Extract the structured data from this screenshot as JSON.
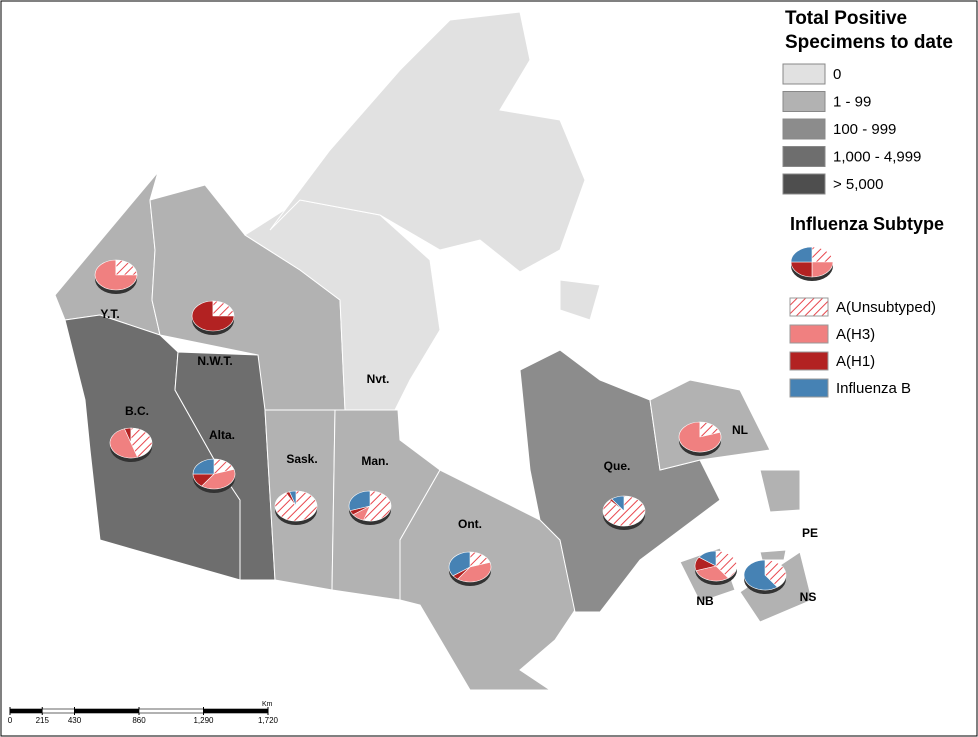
{
  "legend": {
    "title": [
      "Total Positive",
      "Specimens to date"
    ],
    "classes": [
      {
        "label": "0",
        "color": "#e1e1e1"
      },
      {
        "label": "1 - 99",
        "color": "#b2b2b2"
      },
      {
        "label": "100 - 999",
        "color": "#8c8c8c"
      },
      {
        "label": "1,000 - 4,999",
        "color": "#6e6e6e"
      },
      {
        "label": "> 5,000",
        "color": "#4e4e4e"
      }
    ]
  },
  "subtypes": {
    "title": "Influenza Subtype",
    "items": [
      {
        "label": "A(Unsubtyped)",
        "color": "#e8484f",
        "hatch": true
      },
      {
        "label": "A(H3)",
        "color": "#f08080"
      },
      {
        "label": "A(H1)",
        "color": "#b22222"
      },
      {
        "label": "Influenza B",
        "color": "#4682b4"
      }
    ]
  },
  "regions": [
    {
      "label": "Y.T.",
      "class": 1,
      "shares": [
        25,
        75,
        0,
        0
      ]
    },
    {
      "label": "N.W.T.",
      "class": 1,
      "shares": [
        25,
        0,
        75,
        0
      ]
    },
    {
      "label": "Nvt.",
      "class": 0
    },
    {
      "label": "B.C.",
      "class": 3,
      "shares": [
        45,
        50,
        5,
        0
      ]
    },
    {
      "label": "Alta.",
      "class": 3,
      "shares": [
        20,
        40,
        15,
        25
      ]
    },
    {
      "label": "Sask.",
      "class": 1,
      "shares": [
        92,
        0,
        3,
        5
      ]
    },
    {
      "label": "Man.",
      "class": 1,
      "shares": [
        55,
        10,
        5,
        30
      ]
    },
    {
      "label": "Ont.",
      "class": 1,
      "shares": [
        20,
        40,
        5,
        35
      ]
    },
    {
      "label": "Que.",
      "class": 2,
      "shares": [
        88,
        0,
        2,
        10
      ]
    },
    {
      "label": "NL",
      "class": 1,
      "shares": [
        20,
        80,
        0,
        0
      ]
    },
    {
      "label": "NB",
      "class": 1,
      "shares": [
        40,
        30,
        15,
        15
      ]
    },
    {
      "label": "NS",
      "class": 1,
      "shares": [
        40,
        0,
        0,
        60
      ]
    },
    {
      "label": "PE",
      "class": 1
    }
  ],
  "scale": {
    "unit": "Km",
    "ticks": [
      0,
      215,
      430,
      860,
      {
        "value": 1290,
        "label": "1,290"
      },
      {
        "value": 1720,
        "label": "1,720"
      }
    ]
  }
}
